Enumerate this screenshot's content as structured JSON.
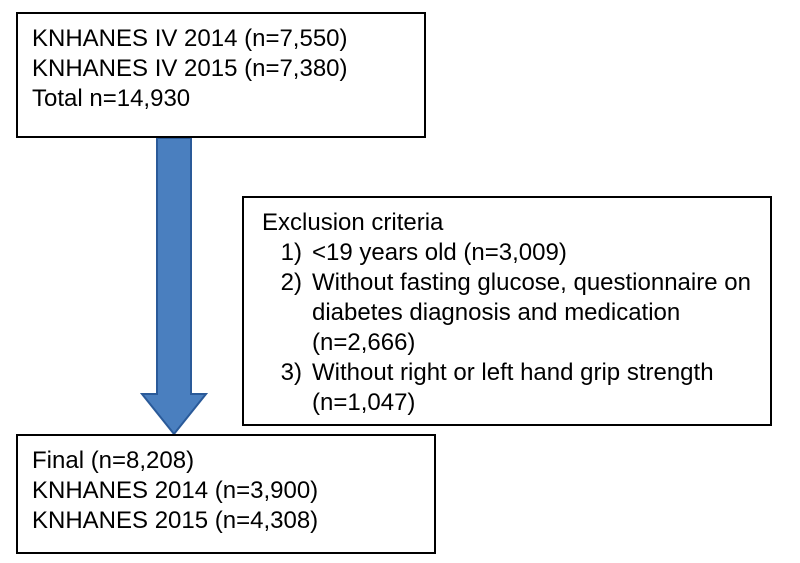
{
  "diagram": {
    "type": "flowchart",
    "background_color": "#ffffff",
    "text_color": "#000000",
    "border_color": "#000000",
    "font_family": "Arial",
    "font_size_pt": 18,
    "top_box": {
      "lines": [
        "KNHANES IV 2014 (n=7,550)",
        "KNHANES IV 2015 (n=7,380)",
        "Total n=14,930"
      ]
    },
    "exclusion_box": {
      "title": "Exclusion criteria",
      "items": [
        {
          "num": "1)",
          "text": "<19 years old (n=3,009)"
        },
        {
          "num": "2)",
          "text": "Without fasting glucose, questionnaire on diabetes diagnosis and medication (n=2,666)"
        },
        {
          "num": "3)",
          "text": "Without right or left hand grip strength (n=1,047)"
        }
      ]
    },
    "bottom_box": {
      "lines": [
        "Final (n=8,208)",
        "KNHANES 2014 (n=3,900)",
        "KNHANES 2015 (n=4,308)"
      ]
    },
    "arrow": {
      "fill_color": "#4a7fbf",
      "stroke_color": "#2a5a99",
      "shaft_width": 34,
      "head_width": 64,
      "head_height": 40,
      "total_height": 296
    }
  }
}
